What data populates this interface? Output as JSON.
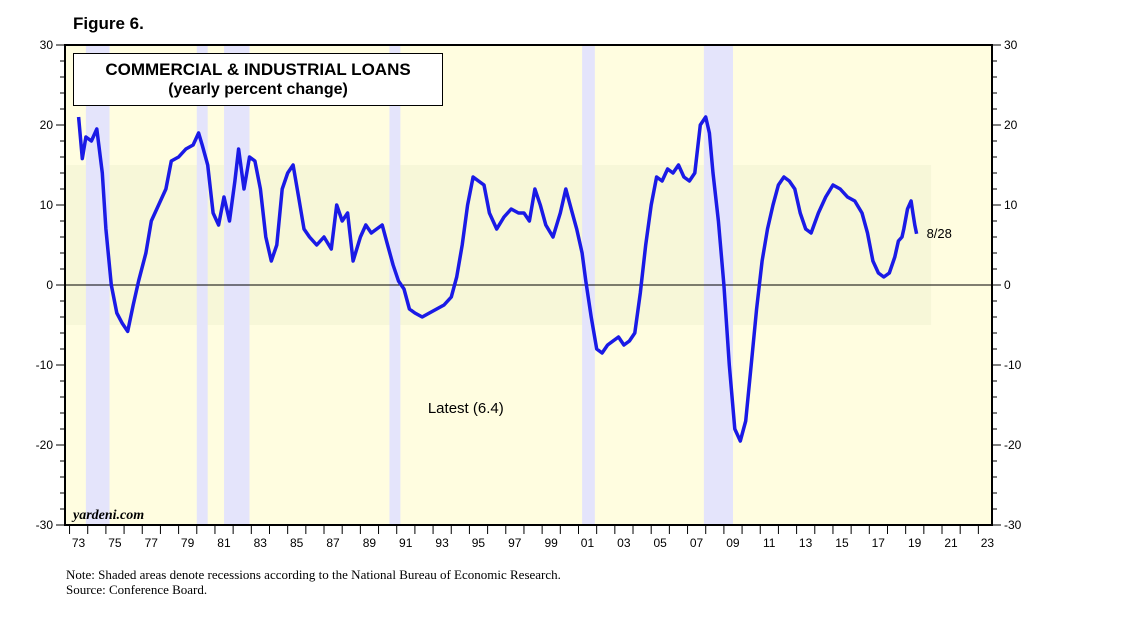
{
  "figure_label": "Figure 6.",
  "note_lines": [
    "Note: Shaded areas denote recessions according to the National Bureau of Economic Research.",
    "Source: Conference Board."
  ],
  "colors": {
    "plot_background": "#fffde0",
    "band": "#f7f7d8",
    "recession": "#e4e4fb",
    "line": "#1a1ae6",
    "label": "#1a1ae6"
  },
  "chart_data": {
    "type": "line",
    "title": "COMMERCIAL & INDUSTRIAL LOANS",
    "subtitle": "(yearly percent change)",
    "annotation": "Latest (6.4)",
    "end_label": "8/28",
    "watermark": "yardeni.com",
    "xlim": [
      1972.75,
      2023.75
    ],
    "ylim": [
      -30,
      30
    ],
    "x_ticks": [
      "73",
      "75",
      "77",
      "79",
      "81",
      "83",
      "85",
      "87",
      "89",
      "91",
      "93",
      "95",
      "97",
      "99",
      "01",
      "03",
      "05",
      "07",
      "09",
      "11",
      "13",
      "15",
      "17",
      "19",
      "21",
      "23"
    ],
    "y_ticks": [
      30,
      20,
      10,
      0,
      -10,
      -20,
      -30
    ],
    "band": [
      -5,
      15
    ],
    "grid": false,
    "recessions": [
      [
        1973.9,
        1975.2
      ],
      [
        1980.0,
        1980.6
      ],
      [
        1981.5,
        1982.9
      ],
      [
        1990.6,
        1991.2
      ],
      [
        2001.2,
        2001.9
      ],
      [
        2007.9,
        2009.5
      ]
    ],
    "series": [
      {
        "values": [
          [
            1973.5,
            21.0
          ],
          [
            1973.7,
            15.8
          ],
          [
            1973.9,
            18.5
          ],
          [
            1974.2,
            18.0
          ],
          [
            1974.5,
            19.5
          ],
          [
            1974.8,
            14.0
          ],
          [
            1975.0,
            7.0
          ],
          [
            1975.3,
            0.0
          ],
          [
            1975.6,
            -3.5
          ],
          [
            1975.9,
            -4.8
          ],
          [
            1976.2,
            -5.8
          ],
          [
            1976.5,
            -2.5
          ],
          [
            1976.8,
            0.5
          ],
          [
            1977.2,
            4.0
          ],
          [
            1977.5,
            8.0
          ],
          [
            1977.9,
            10.0
          ],
          [
            1978.3,
            12.0
          ],
          [
            1978.6,
            15.5
          ],
          [
            1979.0,
            16.0
          ],
          [
            1979.4,
            17.0
          ],
          [
            1979.8,
            17.5
          ],
          [
            1980.1,
            19.0
          ],
          [
            1980.3,
            17.5
          ],
          [
            1980.6,
            15.0
          ],
          [
            1980.9,
            9.0
          ],
          [
            1981.2,
            7.5
          ],
          [
            1981.5,
            11.0
          ],
          [
            1981.8,
            8.0
          ],
          [
            1982.1,
            13.0
          ],
          [
            1982.3,
            17.0
          ],
          [
            1982.6,
            12.0
          ],
          [
            1982.9,
            16.0
          ],
          [
            1983.2,
            15.5
          ],
          [
            1983.5,
            12.0
          ],
          [
            1983.8,
            6.0
          ],
          [
            1984.1,
            3.0
          ],
          [
            1984.4,
            5.0
          ],
          [
            1984.7,
            12.0
          ],
          [
            1985.0,
            14.0
          ],
          [
            1985.3,
            15.0
          ],
          [
            1985.6,
            11.0
          ],
          [
            1985.9,
            7.0
          ],
          [
            1986.2,
            6.0
          ],
          [
            1986.6,
            5.0
          ],
          [
            1987.0,
            6.0
          ],
          [
            1987.4,
            4.5
          ],
          [
            1987.7,
            10.0
          ],
          [
            1988.0,
            8.0
          ],
          [
            1988.3,
            9.0
          ],
          [
            1988.6,
            3.0
          ],
          [
            1989.0,
            6.0
          ],
          [
            1989.3,
            7.5
          ],
          [
            1989.6,
            6.5
          ],
          [
            1989.9,
            7.0
          ],
          [
            1990.2,
            7.5
          ],
          [
            1990.5,
            5.0
          ],
          [
            1990.8,
            2.5
          ],
          [
            1991.1,
            0.5
          ],
          [
            1991.4,
            -0.5
          ],
          [
            1991.7,
            -3.0
          ],
          [
            1992.0,
            -3.5
          ],
          [
            1992.4,
            -4.0
          ],
          [
            1992.8,
            -3.5
          ],
          [
            1993.2,
            -3.0
          ],
          [
            1993.6,
            -2.5
          ],
          [
            1994.0,
            -1.5
          ],
          [
            1994.3,
            1.0
          ],
          [
            1994.6,
            5.0
          ],
          [
            1994.9,
            10.0
          ],
          [
            1995.2,
            13.5
          ],
          [
            1995.5,
            13.0
          ],
          [
            1995.8,
            12.5
          ],
          [
            1996.1,
            9.0
          ],
          [
            1996.5,
            7.0
          ],
          [
            1996.9,
            8.5
          ],
          [
            1997.3,
            9.5
          ],
          [
            1997.7,
            9.0
          ],
          [
            1998.0,
            9.0
          ],
          [
            1998.3,
            8.0
          ],
          [
            1998.6,
            12.0
          ],
          [
            1998.9,
            10.0
          ],
          [
            1999.2,
            7.5
          ],
          [
            1999.6,
            6.0
          ],
          [
            2000.0,
            9.0
          ],
          [
            2000.3,
            12.0
          ],
          [
            2000.6,
            9.5
          ],
          [
            2000.9,
            7.0
          ],
          [
            2001.2,
            4.0
          ],
          [
            2001.4,
            0.5
          ],
          [
            2001.7,
            -4.0
          ],
          [
            2002.0,
            -8.0
          ],
          [
            2002.3,
            -8.5
          ],
          [
            2002.6,
            -7.5
          ],
          [
            2002.9,
            -7.0
          ],
          [
            2003.2,
            -6.5
          ],
          [
            2003.5,
            -7.5
          ],
          [
            2003.8,
            -7.0
          ],
          [
            2004.1,
            -6.0
          ],
          [
            2004.4,
            -1.0
          ],
          [
            2004.7,
            5.0
          ],
          [
            2005.0,
            10.0
          ],
          [
            2005.3,
            13.5
          ],
          [
            2005.6,
            13.0
          ],
          [
            2005.9,
            14.5
          ],
          [
            2006.2,
            14.0
          ],
          [
            2006.5,
            15.0
          ],
          [
            2006.8,
            13.5
          ],
          [
            2007.1,
            13.0
          ],
          [
            2007.4,
            14.0
          ],
          [
            2007.7,
            20.0
          ],
          [
            2008.0,
            21.0
          ],
          [
            2008.2,
            19.0
          ],
          [
            2008.4,
            14.0
          ],
          [
            2008.7,
            8.0
          ],
          [
            2009.0,
            0.0
          ],
          [
            2009.3,
            -10.0
          ],
          [
            2009.6,
            -18.0
          ],
          [
            2009.9,
            -19.5
          ],
          [
            2010.2,
            -17.0
          ],
          [
            2010.5,
            -10.0
          ],
          [
            2010.8,
            -3.0
          ],
          [
            2011.1,
            3.0
          ],
          [
            2011.4,
            7.0
          ],
          [
            2011.7,
            10.0
          ],
          [
            2012.0,
            12.5
          ],
          [
            2012.3,
            13.5
          ],
          [
            2012.6,
            13.0
          ],
          [
            2012.9,
            12.0
          ],
          [
            2013.2,
            9.0
          ],
          [
            2013.5,
            7.0
          ],
          [
            2013.8,
            6.5
          ],
          [
            2014.2,
            9.0
          ],
          [
            2014.6,
            11.0
          ],
          [
            2015.0,
            12.5
          ],
          [
            2015.4,
            12.0
          ],
          [
            2015.8,
            11.0
          ],
          [
            2016.2,
            10.5
          ],
          [
            2016.6,
            9.0
          ],
          [
            2016.9,
            6.5
          ],
          [
            2017.2,
            3.0
          ],
          [
            2017.5,
            1.5
          ],
          [
            2017.8,
            1.0
          ],
          [
            2018.1,
            1.5
          ],
          [
            2018.4,
            3.5
          ],
          [
            2018.6,
            5.5
          ],
          [
            2018.8,
            6.0
          ],
          [
            2018.9,
            7.0
          ],
          [
            2019.1,
            9.5
          ],
          [
            2019.3,
            10.5
          ],
          [
            2019.4,
            9.0
          ],
          [
            2019.5,
            7.5
          ],
          [
            2019.6,
            6.4
          ]
        ]
      }
    ]
  }
}
